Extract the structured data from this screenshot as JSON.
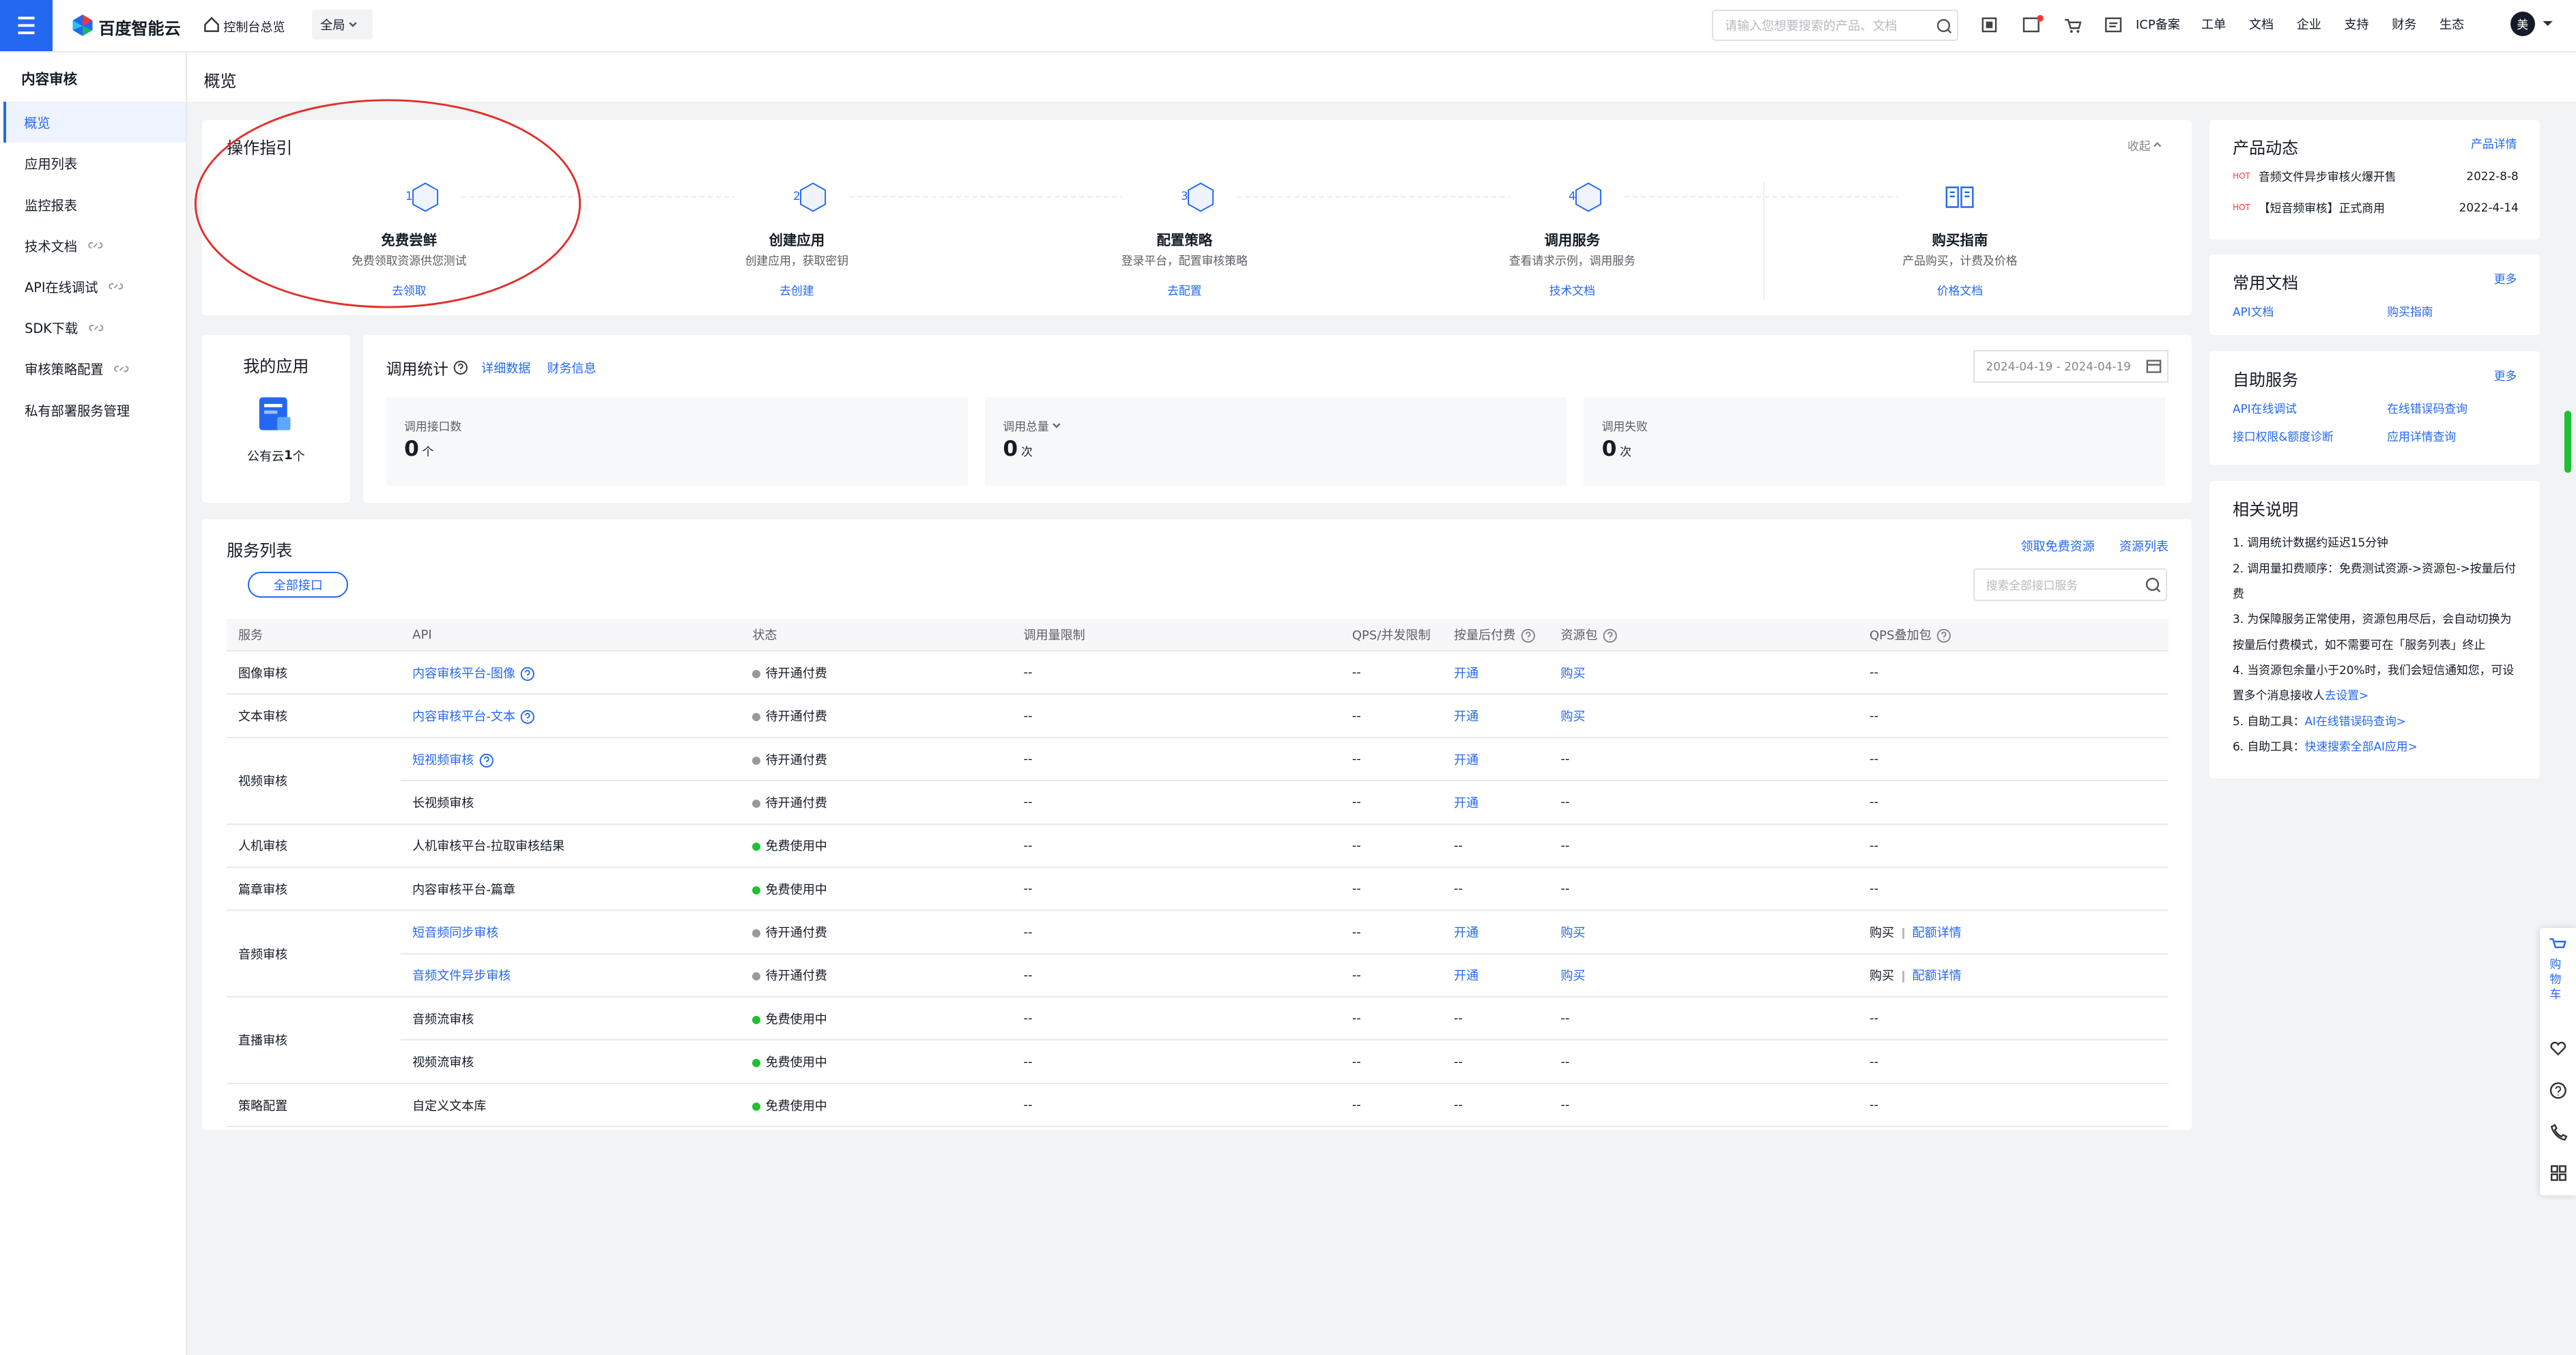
{
  "header": {
    "logo": "百度智能云",
    "nav": "控制台总览",
    "region": "全局",
    "search_placeholder": "请输入您想要搜索的产品、文档",
    "links": [
      "ICP备案",
      "工单",
      "文档",
      "企业",
      "支持",
      "财务",
      "生态"
    ],
    "avatar": "美"
  },
  "sidebar": {
    "title": "内容审核",
    "items": [
      "概览",
      "应用列表",
      "监控报表",
      "技术文档",
      "API在线调试",
      "SDK下载",
      "审核策略配置",
      "私有部署服务管理"
    ],
    "external": [
      false,
      false,
      false,
      true,
      true,
      true,
      true,
      false
    ],
    "active": 0
  },
  "page_title": "概览",
  "guide": {
    "title": "操作指引",
    "collapse": "收起",
    "steps": [
      {
        "num": "1",
        "title": "免费尝鲜",
        "desc": "免费领取资源供您测试",
        "link": "去领取"
      },
      {
        "num": "2",
        "title": "创建应用",
        "desc": "创建应用，获取密钥",
        "link": "去创建"
      },
      {
        "num": "3",
        "title": "配置策略",
        "desc": "登录平台，配置审核策略",
        "link": "去配置"
      },
      {
        "num": "4",
        "title": "调用服务",
        "desc": "查看请求示例，调用服务",
        "link": "技术文档"
      },
      {
        "title": "购买指南",
        "desc": "产品购买，计费及价格",
        "link": "价格文档"
      }
    ]
  },
  "apps": {
    "title": "我的应用",
    "label": "公有云",
    "count": "1",
    "unit": "个"
  },
  "stats": {
    "title": "调用统计",
    "links": [
      "详细数据",
      "财务信息"
    ],
    "date": "2024-04-19 - 2024-04-19",
    "cards": [
      {
        "label": "调用接口数",
        "value": 0,
        "unit": "个",
        "dropdown": false
      },
      {
        "label": "调用总量",
        "value": 0,
        "unit": "次",
        "dropdown": true
      },
      {
        "label": "调用失败",
        "value": 0,
        "unit": "次",
        "dropdown": false
      }
    ]
  },
  "services": {
    "title": "服务列表",
    "links": [
      "领取免费资源",
      "资源列表"
    ],
    "filter": "全部接口",
    "search_placeholder": "搜索全部接口服务",
    "columns": [
      {
        "text": "服务",
        "help": false
      },
      {
        "text": "API",
        "help": false
      },
      {
        "text": "状态",
        "help": false
      },
      {
        "text": "调用量限制",
        "help": false
      },
      {
        "text": "QPS/并发限制",
        "help": false
      },
      {
        "text": "按量后付费",
        "help": true
      },
      {
        "text": "资源包",
        "help": true
      },
      {
        "text": "QPS叠加包",
        "help": true
      }
    ],
    "groups": [
      {
        "name": "图像审核",
        "rows": [
          {
            "api": "内容审核平台-图像",
            "link": true,
            "help": true,
            "status": "待开通付费",
            "dot": "#999999",
            "limit": "--",
            "qps": "--",
            "postpaid": "开通",
            "pack": "购买",
            "qps_pack": [
              "--"
            ]
          }
        ]
      },
      {
        "name": "文本审核",
        "rows": [
          {
            "api": "内容审核平台-文本",
            "link": true,
            "help": true,
            "status": "待开通付费",
            "dot": "#999999",
            "limit": "--",
            "qps": "--",
            "postpaid": "开通",
            "pack": "购买",
            "qps_pack": [
              "--"
            ]
          }
        ]
      },
      {
        "name": "视频审核",
        "rows": [
          {
            "api": "短视频审核",
            "link": true,
            "help": true,
            "status": "待开通付费",
            "dot": "#999999",
            "limit": "--",
            "qps": "--",
            "postpaid": "开通",
            "pack": "--",
            "qps_pack": [
              "--"
            ]
          },
          {
            "api": "长视频审核",
            "link": false,
            "help": false,
            "status": "待开通付费",
            "dot": "#999999",
            "limit": "--",
            "qps": "--",
            "postpaid": "开通",
            "pack": "--",
            "qps_pack": [
              "--"
            ]
          }
        ]
      },
      {
        "name": "人机审核",
        "rows": [
          {
            "api": "人机审核平台-拉取审核结果",
            "link": false,
            "help": false,
            "status": "免费使用中",
            "dot": "#1fc031",
            "limit": "--",
            "qps": "--",
            "postpaid": "--",
            "pack": "--",
            "qps_pack": [
              "--"
            ]
          }
        ]
      },
      {
        "name": "篇章审核",
        "rows": [
          {
            "api": "内容审核平台-篇章",
            "link": false,
            "help": false,
            "status": "免费使用中",
            "dot": "#1fc031",
            "limit": "--",
            "qps": "--",
            "postpaid": "--",
            "pack": "--",
            "qps_pack": [
              "--"
            ]
          }
        ]
      },
      {
        "name": "音频审核",
        "rows": [
          {
            "api": "短音频同步审核",
            "link": true,
            "help": false,
            "status": "待开通付费",
            "dot": "#999999",
            "limit": "--",
            "qps": "--",
            "postpaid": "开通",
            "pack": "购买",
            "qps_pack": [
              "购买",
              "配额详情"
            ]
          },
          {
            "api": "音频文件异步审核",
            "link": true,
            "help": false,
            "status": "待开通付费",
            "dot": "#999999",
            "limit": "--",
            "qps": "--",
            "postpaid": "开通",
            "pack": "购买",
            "qps_pack": [
              "购买",
              "配额详情"
            ]
          }
        ]
      },
      {
        "name": "直播审核",
        "rows": [
          {
            "api": "音频流审核",
            "link": false,
            "help": false,
            "status": "免费使用中",
            "dot": "#1fc031",
            "limit": "--",
            "qps": "--",
            "postpaid": "--",
            "pack": "--",
            "qps_pack": [
              "--"
            ]
          },
          {
            "api": "视频流审核",
            "link": false,
            "help": false,
            "status": "免费使用中",
            "dot": "#1fc031",
            "limit": "--",
            "qps": "--",
            "postpaid": "--",
            "pack": "--",
            "qps_pack": [
              "--"
            ]
          }
        ]
      },
      {
        "name": "策略配置",
        "rows": [
          {
            "api": "自定义文本库",
            "link": false,
            "help": false,
            "status": "免费使用中",
            "dot": "#1fc031",
            "limit": "--",
            "qps": "--",
            "postpaid": "--",
            "pack": "--",
            "qps_pack": [
              "--"
            ]
          }
        ]
      }
    ]
  },
  "news": {
    "title": "产品动态",
    "more": "产品详情",
    "items": [
      {
        "tag": "HOT",
        "text": "音频文件异步审核火爆开售",
        "date": "2022-8-8"
      },
      {
        "tag": "HOT",
        "text": "【短音频审核】正式商用",
        "date": "2022-4-14"
      }
    ]
  },
  "docs": {
    "title": "常用文档",
    "more": "更多",
    "links": [
      "API文档",
      "购买指南"
    ]
  },
  "self_service": {
    "title": "自助服务",
    "more": "更多",
    "links": [
      "API在线调试",
      "在线错误码查询",
      "接口权限&额度诊断",
      "应用详情查询"
    ]
  },
  "notes": {
    "title": "相关说明",
    "items": [
      {
        "text": "1. 调用统计数据约延迟15分钟"
      },
      {
        "text": "2. 调用量扣费顺序：免费测试资源->资源包->按量后付费"
      },
      {
        "text": "3. 为保障服务正常使用，资源包用尽后，会自动切换为按量后付费模式，如不需要可在「服务列表」终止"
      },
      {
        "text": "4. 当资源包余量小于20%时，我们会短信通知您，可设置多个消息接收人",
        "link": "去设置>"
      },
      {
        "text": "5. 自助工具：",
        "link": "AI在线错误码查询>"
      },
      {
        "text": "6. 自助工具：",
        "link": "快速搜索全部AI应用>"
      }
    ]
  },
  "float": {
    "cart": "购物车"
  }
}
